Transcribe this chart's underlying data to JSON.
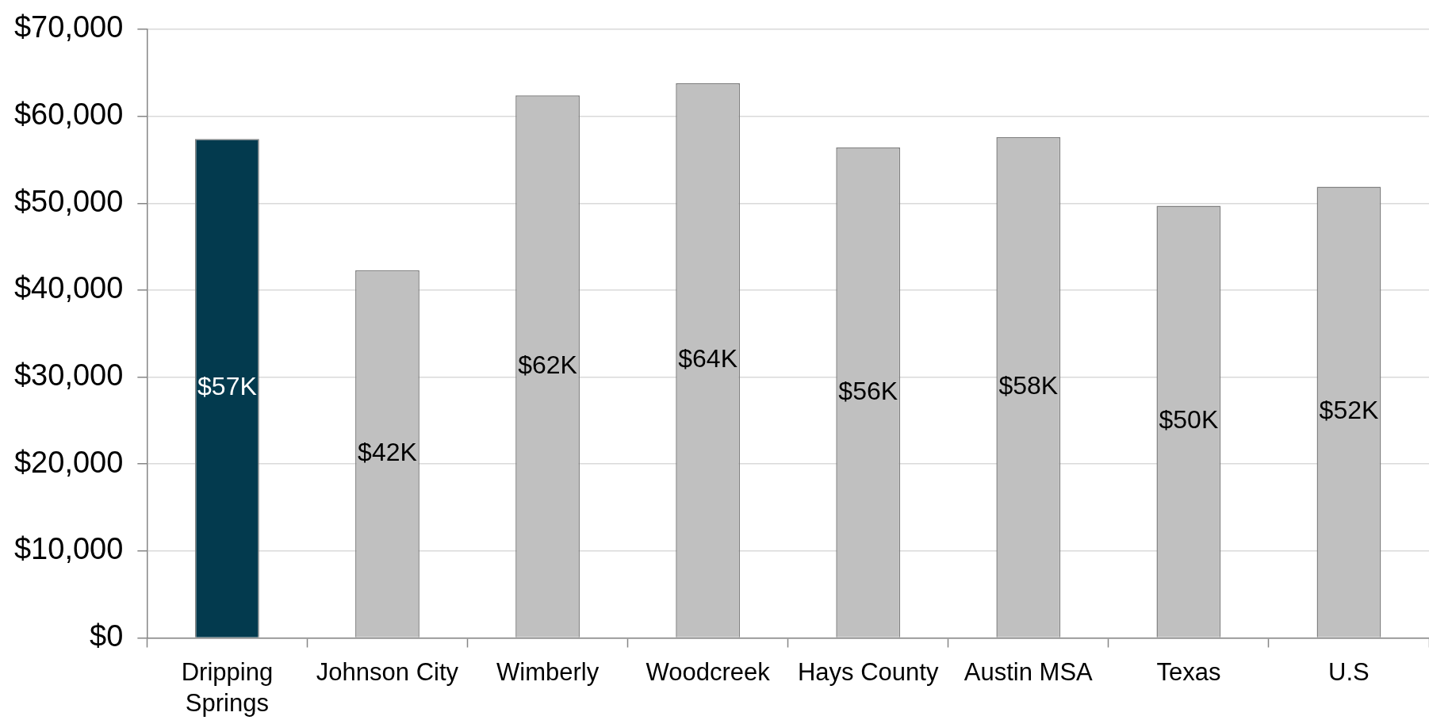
{
  "chart_data": {
    "type": "bar",
    "categories": [
      "Dripping Springs",
      "Johnson City",
      "Wimberly",
      "Woodcreek",
      "Hays County",
      "Austin MSA",
      "Texas",
      "U.S"
    ],
    "values": [
      57400,
      42300,
      62400,
      63800,
      56400,
      57600,
      49700,
      51900
    ],
    "colors": [
      "#033a4e",
      "#c0c0c0",
      "#c0c0c0",
      "#c0c0c0",
      "#c0c0c0",
      "#c0c0c0",
      "#c0c0c0",
      "#c0c0c0"
    ],
    "value_labels": [
      "$57K",
      "$42K",
      "$62K",
      "$64K",
      "$56K",
      "$58K",
      "$50K",
      "$52K"
    ],
    "ylim": [
      0,
      70000
    ],
    "yticks": [
      {
        "value": 0,
        "label": "$0"
      },
      {
        "value": 10000,
        "label": "$10,000"
      },
      {
        "value": 20000,
        "label": "$20,000"
      },
      {
        "value": 30000,
        "label": "$30,000"
      },
      {
        "value": 40000,
        "label": "$40,000"
      },
      {
        "value": 50000,
        "label": "$50,000"
      },
      {
        "value": 60000,
        "label": "$60,000"
      },
      {
        "value": 70000,
        "label": "$70,000"
      }
    ],
    "grid": "y",
    "legend": false
  }
}
